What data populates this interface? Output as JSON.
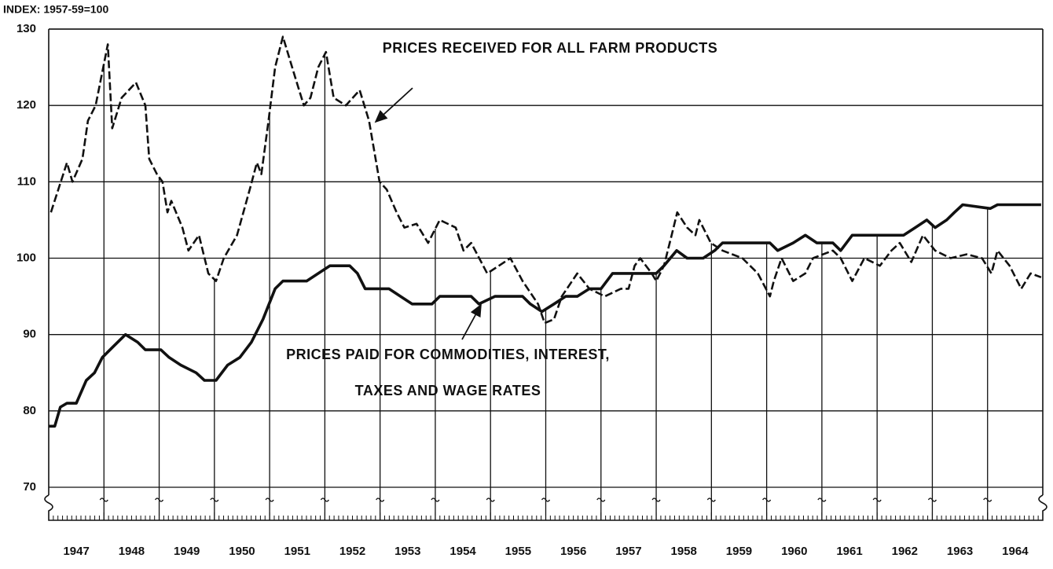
{
  "chart_data": {
    "type": "line",
    "axis_label": "INDEX: 1957-59=100",
    "xlim": [
      1947,
      1965
    ],
    "ylim": [
      70,
      130
    ],
    "yticks": [
      70,
      80,
      90,
      100,
      110,
      120,
      130
    ],
    "grid": true,
    "xgrid_lines": [
      1948,
      1949,
      1950,
      1951,
      1952,
      1953,
      1954,
      1955,
      1956,
      1957,
      1958,
      1959,
      1960,
      1961,
      1962,
      1963,
      1964
    ],
    "xticks": [
      {
        "value": 1947.5,
        "label": "1947"
      },
      {
        "value": 1948.5,
        "label": "1948"
      },
      {
        "value": 1949.5,
        "label": "1949"
      },
      {
        "value": 1950.5,
        "label": "1950"
      },
      {
        "value": 1951.5,
        "label": "1951"
      },
      {
        "value": 1952.5,
        "label": "1952"
      },
      {
        "value": 1953.5,
        "label": "1953"
      },
      {
        "value": 1954.5,
        "label": "1954"
      },
      {
        "value": 1955.5,
        "label": "1955"
      },
      {
        "value": 1956.5,
        "label": "1956"
      },
      {
        "value": 1957.5,
        "label": "1957"
      },
      {
        "value": 1958.5,
        "label": "1958"
      },
      {
        "value": 1959.5,
        "label": "1959"
      },
      {
        "value": 1960.5,
        "label": "1960"
      },
      {
        "value": 1961.5,
        "label": "1961"
      },
      {
        "value": 1962.5,
        "label": "1962"
      },
      {
        "value": 1963.5,
        "label": "1963"
      },
      {
        "value": 1964.5,
        "label": "1964"
      }
    ],
    "series": [
      {
        "color": "#111111",
        "style": "dashed",
        "x": [
          1947.04,
          1947.33,
          1947.43,
          1947.61,
          1947.71,
          1947.85,
          1948.07,
          1948.15,
          1948.32,
          1948.58,
          1948.75,
          1948.82,
          1948.96,
          1949.06,
          1949.15,
          1949.22,
          1949.42,
          1949.53,
          1949.72,
          1949.89,
          1950.03,
          1950.17,
          1950.41,
          1950.64,
          1950.77,
          1950.85,
          1950.98,
          1951.1,
          1951.24,
          1951.45,
          1951.62,
          1951.74,
          1951.88,
          1952.02,
          1952.16,
          1952.38,
          1952.63,
          1952.8,
          1952.99,
          1953.12,
          1953.3,
          1953.44,
          1953.66,
          1953.87,
          1954.08,
          1954.37,
          1954.51,
          1954.65,
          1954.94,
          1955.15,
          1955.36,
          1955.58,
          1955.86,
          1955.98,
          1956.15,
          1956.29,
          1956.57,
          1956.79,
          1957.07,
          1957.36,
          1957.5,
          1957.61,
          1957.71,
          1957.92,
          1958.0,
          1958.14,
          1958.28,
          1958.38,
          1958.56,
          1958.71,
          1958.78,
          1958.99,
          1959.2,
          1959.56,
          1959.84,
          1960.06,
          1960.13,
          1960.27,
          1960.48,
          1960.7,
          1960.84,
          1961.2,
          1961.34,
          1961.55,
          1961.77,
          1962.05,
          1962.26,
          1962.41,
          1962.62,
          1962.83,
          1963.05,
          1963.33,
          1963.62,
          1963.9,
          1964.07,
          1964.18,
          1964.4,
          1964.61,
          1964.78,
          1964.97
        ],
        "values": [
          106,
          112.5,
          110,
          113,
          118,
          120,
          128,
          117,
          121,
          123,
          120,
          113,
          111,
          110,
          106,
          107.5,
          104,
          101,
          103,
          98,
          97,
          100,
          103,
          109,
          112.5,
          111,
          118,
          125,
          129,
          124,
          120,
          121,
          125,
          127,
          121,
          120,
          122,
          118,
          110,
          109,
          106,
          104,
          104.5,
          102,
          105,
          104,
          101,
          102,
          98,
          99,
          100,
          97,
          94,
          91.5,
          92,
          95,
          98,
          96,
          95,
          96,
          96,
          99,
          100,
          98,
          97,
          99,
          103,
          106,
          104,
          103,
          105,
          102,
          101,
          100,
          98,
          95,
          97,
          100,
          97,
          98,
          100,
          101,
          100,
          97,
          100,
          99,
          101,
          102,
          99.5,
          103,
          101,
          100,
          100.5,
          100,
          98,
          101,
          99,
          96,
          98,
          97.5
        ]
      },
      {
        "color": "#111111",
        "style": "solid",
        "x": [
          1947.0,
          1947.11,
          1947.21,
          1947.33,
          1947.5,
          1947.68,
          1947.83,
          1947.97,
          1948.18,
          1948.39,
          1948.61,
          1948.75,
          1949.03,
          1949.18,
          1949.39,
          1949.67,
          1949.82,
          1950.03,
          1950.24,
          1950.46,
          1950.67,
          1950.88,
          1951.1,
          1951.24,
          1951.67,
          1951.88,
          1952.09,
          1952.45,
          1952.59,
          1952.73,
          1953.16,
          1953.37,
          1953.58,
          1953.94,
          1954.08,
          1954.37,
          1954.65,
          1954.79,
          1955.08,
          1955.58,
          1955.72,
          1955.93,
          1956.15,
          1956.36,
          1956.57,
          1956.79,
          1957.0,
          1957.21,
          1957.64,
          1958.0,
          1958.14,
          1958.37,
          1958.56,
          1958.85,
          1959.06,
          1959.2,
          1960.06,
          1960.2,
          1960.48,
          1960.7,
          1960.91,
          1961.2,
          1961.34,
          1961.55,
          1962.48,
          1962.69,
          1962.9,
          1963.05,
          1963.26,
          1963.4,
          1963.55,
          1964.05,
          1964.18,
          1964.97
        ],
        "values": [
          78,
          78,
          80.5,
          81,
          81,
          84,
          85,
          87,
          88.5,
          90,
          89,
          88,
          88,
          87,
          86,
          85,
          84,
          84,
          86,
          87,
          89,
          92,
          96,
          97,
          97,
          98,
          99,
          99,
          98,
          96,
          96,
          95,
          94,
          94,
          95,
          95,
          95,
          94,
          95,
          95,
          94,
          93,
          94,
          95,
          95,
          96,
          96,
          98,
          98,
          98,
          99,
          101,
          100,
          100,
          101,
          102,
          102,
          101,
          102,
          103,
          102,
          102,
          101,
          103,
          103,
          104,
          105,
          104,
          105,
          106,
          107,
          106.5,
          107,
          107
        ]
      }
    ],
    "annotations": [
      {
        "series": 0,
        "lines": [
          "PRICES RECEIVED FOR ALL FARM PRODUCTS"
        ]
      },
      {
        "series": 1,
        "lines": [
          "PRICES PAID FOR COMMODITIES, INTEREST,",
          "TAXES AND WAGE RATES"
        ]
      }
    ]
  }
}
